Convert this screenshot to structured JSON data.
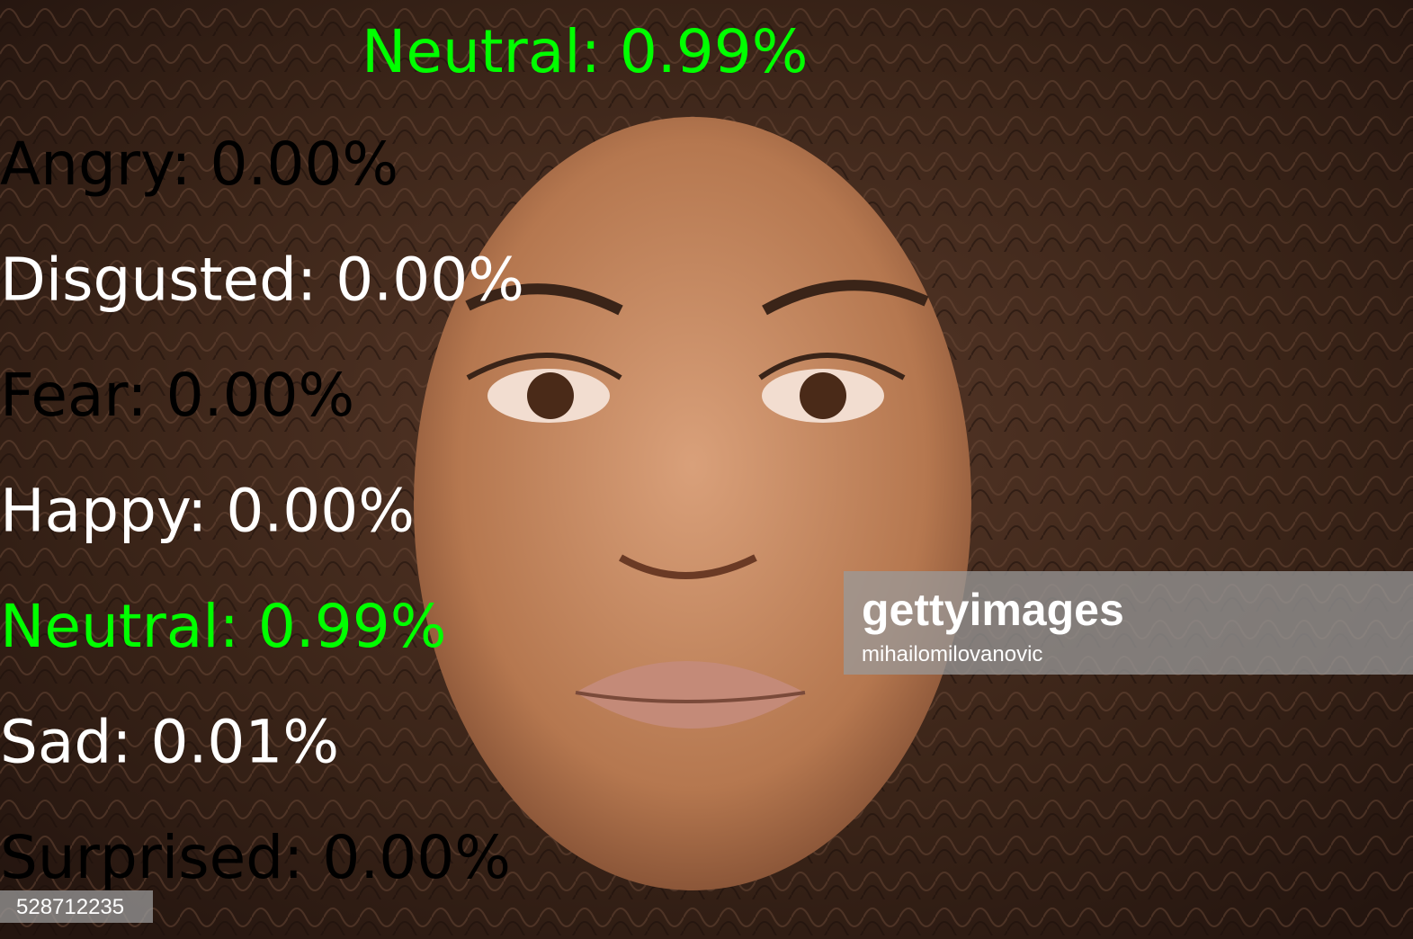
{
  "top_label": {
    "text": "Neutral: 0.99%",
    "color": "#00ff00"
  },
  "emotions": [
    {
      "text": "Angry: 0.00%",
      "color": "#000000"
    },
    {
      "text": "Disgusted: 0.00%",
      "color": "#ffffff"
    },
    {
      "text": "Fear: 0.00%",
      "color": "#000000"
    },
    {
      "text": "Happy: 0.00%",
      "color": "#ffffff"
    },
    {
      "text": "Neutral: 0.99%",
      "color": "#00ff00"
    },
    {
      "text": "Sad: 0.01%",
      "color": "#ffffff"
    },
    {
      "text": "Surprised: 0.00%",
      "color": "#000000"
    }
  ],
  "watermark": {
    "brand": "gettyimages",
    "author": "mihailomilovanovic",
    "id": "528712235"
  }
}
